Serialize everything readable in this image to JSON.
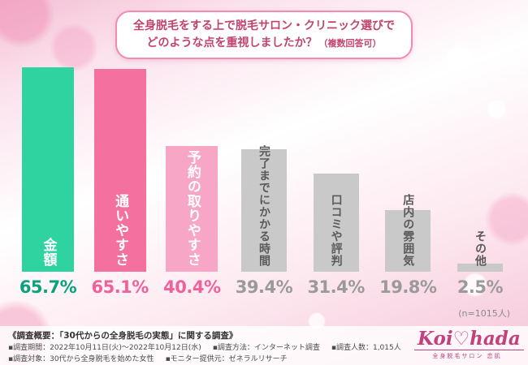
{
  "title": {
    "line1": "全身脱毛をする上で脱毛サロン・クリニック選びで",
    "line2": "どのような点を重視しましたか？",
    "note": "（複数回答可）"
  },
  "chart_data": {
    "type": "bar",
    "categories": [
      "金額",
      "通いやすさ",
      "予約の取りやすさ",
      "完了までにかかる時間",
      "口コミや評判",
      "店内の雰囲気",
      "その他"
    ],
    "values": [
      65.7,
      65.1,
      40.4,
      39.4,
      31.4,
      19.8,
      2.5
    ],
    "value_labels": [
      "65.7%",
      "65.1%",
      "40.4%",
      "39.4%",
      "31.4%",
      "19.8%",
      "2.5%"
    ],
    "bar_colors": [
      "#2fd3a0",
      "#f4719f",
      "#f7a6c6",
      "#c9c9c9",
      "#c9c9c9",
      "#c9c9c9",
      "#c9c9c9"
    ],
    "label_colors": [
      "#ffffff",
      "#ffffff",
      "#ffffff",
      "#5a5a5a",
      "#5a5a5a",
      "#5a5a5a",
      "#5a5a5a"
    ],
    "value_colors": [
      "#0aa17c",
      "#f0619b",
      "#f0619b",
      "#9a9a9a",
      "#9a9a9a",
      "#9a9a9a",
      "#9a9a9a"
    ],
    "ylim": [
      0,
      70
    ],
    "legend": "none",
    "grid": false,
    "sample_note": "(n=1015人)"
  },
  "footer": {
    "heading": "《調査概要：「30代からの全身脱毛の実態」に関する調査》",
    "rows": [
      [
        "▪調査期間：2022年10月11日(火)～2022年10月12日(水)",
        "▪調査方法：インターネット調査",
        "▪調査人数：1,015人"
      ],
      [
        "▪調査対象：30代から全身脱毛を始めた女性",
        "▪モニター提供元：ゼネラルリサーチ"
      ]
    ]
  },
  "logo": {
    "text": "Koi♡hada",
    "sub": "全身脱毛サロン 恋肌"
  }
}
